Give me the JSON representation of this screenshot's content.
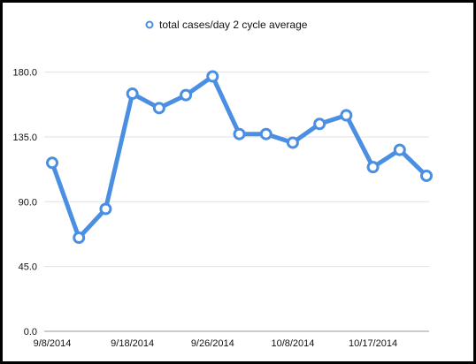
{
  "chart_data": {
    "type": "line",
    "title": "",
    "xlabel": "",
    "ylabel": "",
    "legend": {
      "position": "top-center",
      "entries": [
        "total cases/day 2 cycle average"
      ]
    },
    "grid": {
      "horizontal": true,
      "vertical": false
    },
    "ylim": [
      0,
      200
    ],
    "y_ticks": [
      "0.0",
      "45.0",
      "90.0",
      "135.0",
      "180.0"
    ],
    "y_tick_values": [
      0,
      45,
      90,
      135,
      180
    ],
    "x_tick_labels": [
      "9/8/2014",
      "9/18/2014",
      "9/26/2014",
      "10/8/2014",
      "10/17/2014"
    ],
    "x_tick_label_points": [
      0,
      3,
      6,
      9,
      12
    ],
    "series": [
      {
        "name": "total cases/day 2 cycle average",
        "color": "#4a8fe2",
        "marker": "hollow-circle",
        "values": [
          117,
          65,
          85,
          165,
          155,
          164,
          177,
          137,
          137,
          131,
          144,
          150,
          114,
          126,
          108
        ]
      }
    ]
  }
}
